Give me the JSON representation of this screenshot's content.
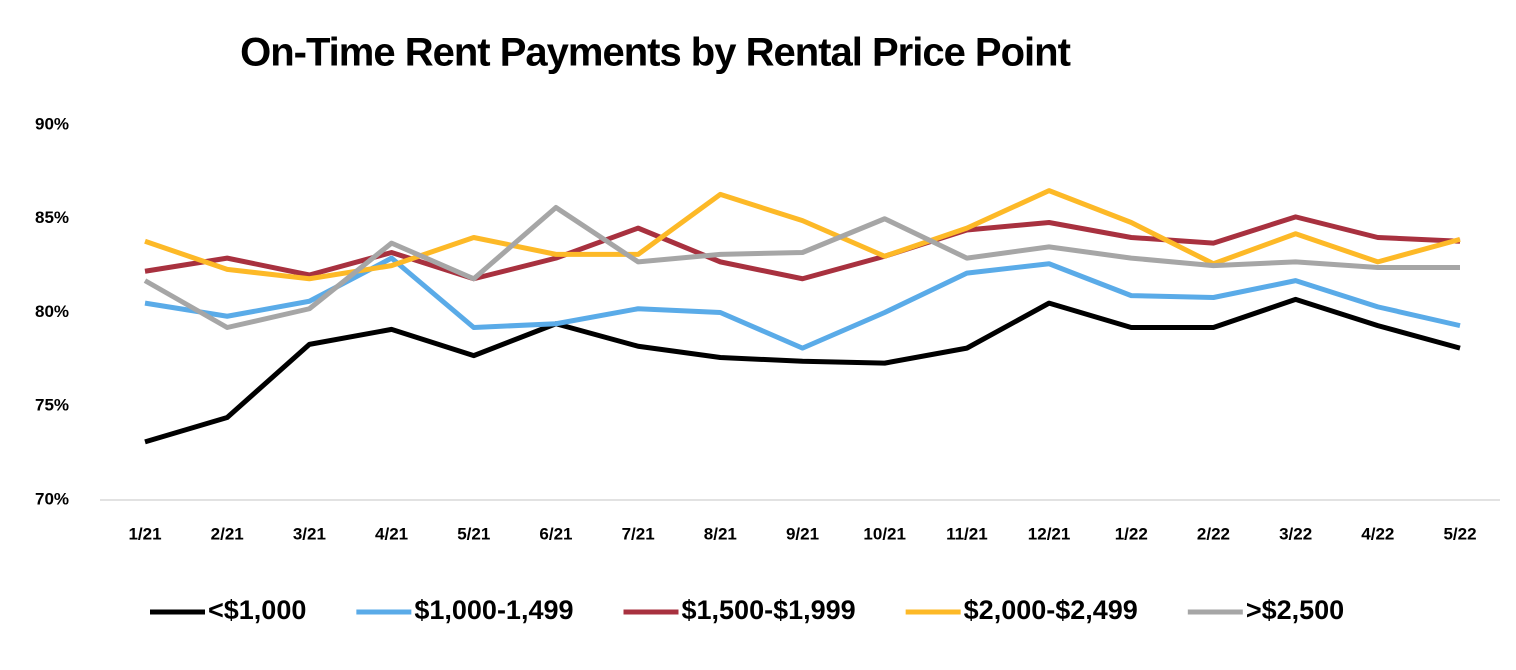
{
  "chart_data": {
    "type": "line",
    "title": "On-Time Rent Payments by Rental Price Point",
    "categories": [
      "1/21",
      "2/21",
      "3/21",
      "4/21",
      "5/21",
      "6/21",
      "7/21",
      "8/21",
      "9/21",
      "10/21",
      "11/21",
      "12/21",
      "1/22",
      "2/22",
      "3/22",
      "4/22",
      "5/22"
    ],
    "series": [
      {
        "name": "<$1,000",
        "color": "#000000",
        "values": [
          73.1,
          74.4,
          78.3,
          79.1,
          77.7,
          79.4,
          78.2,
          77.6,
          77.4,
          77.3,
          78.1,
          80.5,
          79.2,
          79.2,
          80.7,
          79.3,
          78.1
        ]
      },
      {
        "name": "$1,000-1,499",
        "color": "#5aabe8",
        "values": [
          80.5,
          79.8,
          80.6,
          82.9,
          79.2,
          79.4,
          80.2,
          80.0,
          78.1,
          80.0,
          82.1,
          82.6,
          80.9,
          80.8,
          81.7,
          80.3,
          79.3
        ]
      },
      {
        "name": "$1,500-$1,999",
        "color": "#a8313f",
        "values": [
          82.2,
          82.9,
          82.0,
          83.2,
          81.8,
          82.9,
          84.5,
          82.7,
          81.8,
          83.0,
          84.4,
          84.8,
          84.0,
          83.7,
          85.1,
          84.0,
          83.8
        ]
      },
      {
        "name": "$2,000-$2,499",
        "color": "#fdb927",
        "values": [
          83.8,
          82.3,
          81.8,
          82.5,
          84.0,
          83.1,
          83.1,
          86.3,
          84.9,
          83.0,
          84.5,
          86.5,
          84.8,
          82.6,
          84.2,
          82.7,
          83.9
        ]
      },
      {
        "name": ">$2,500",
        "color": "#a6a6a6",
        "values": [
          81.7,
          79.2,
          80.2,
          83.7,
          81.8,
          85.6,
          82.7,
          83.1,
          83.2,
          85.0,
          82.9,
          83.5,
          82.9,
          82.5,
          82.7,
          82.4,
          82.4
        ]
      }
    ],
    "ylim": [
      70,
      90
    ],
    "yticks": [
      {
        "value": 70,
        "label": "70%"
      },
      {
        "value": 75,
        "label": "75%"
      },
      {
        "value": 80,
        "label": "80%"
      },
      {
        "value": 85,
        "label": "85%"
      },
      {
        "value": 90,
        "label": "90%"
      }
    ],
    "legend": "bottom"
  }
}
